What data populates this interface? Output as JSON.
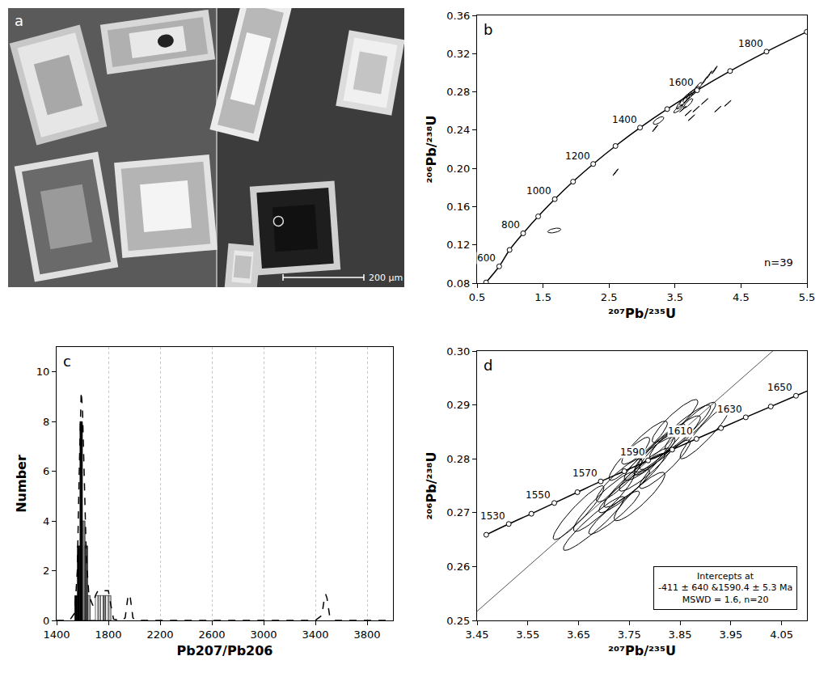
{
  "image_panel": {
    "panel_label": "a",
    "scale_bar": "200 µm"
  },
  "chart_data": [
    {
      "panel_label": "b",
      "type": "concordia",
      "xlabel": "²⁰⁷Pb/²³⁵U",
      "ylabel": "²⁰⁶Pb/²³⁸U",
      "xlim": [
        0.5,
        5.5
      ],
      "ylim": [
        0.08,
        0.36
      ],
      "xticks": [
        0.5,
        1.5,
        2.5,
        3.5,
        4.5,
        5.5
      ],
      "yticks": [
        0.08,
        0.12,
        0.16,
        {
          "value": 0.2,
          "label": "0.20"
        },
        0.24,
        0.28,
        0.32,
        0.36
      ],
      "grid": false,
      "concordia": {
        "ages": [
          500,
          600,
          700,
          800,
          900,
          1000,
          1100,
          1200,
          1300,
          1400,
          1500,
          1600,
          1700,
          1800,
          1900
        ],
        "x": [
          0.6362,
          0.8357,
          0.9926,
          1.1987,
          1.4263,
          1.6774,
          1.9545,
          2.2603,
          2.5977,
          2.9701,
          3.381,
          3.8344,
          4.3347,
          4.8869,
          5.4962
        ],
        "y": [
          0.0807,
          0.0975,
          0.1147,
          0.1321,
          0.1498,
          0.1678,
          0.1861,
          0.2046,
          0.2234,
          0.2426,
          0.262,
          0.2817,
          0.3018,
          0.3221,
          0.3428
        ],
        "labeled_ages": [
          600,
          800,
          1000,
          1200,
          1400,
          1600,
          1800
        ]
      },
      "ellipses": {
        "x": [
          1.67,
          2.6,
          3.2,
          3.25,
          3.55,
          3.6,
          3.65,
          3.7,
          3.75,
          3.8,
          3.85,
          3.7,
          3.95,
          4.02,
          4.1,
          3.62,
          3.7,
          3.75,
          3.82,
          3.95,
          4.15,
          4.3
        ],
        "y": [
          0.135,
          0.196,
          0.242,
          0.25,
          0.262,
          0.268,
          0.272,
          0.275,
          0.278,
          0.281,
          0.285,
          0.268,
          0.292,
          0.298,
          0.303,
          0.262,
          0.258,
          0.253,
          0.262,
          0.27,
          0.262,
          0.268
        ],
        "x_err": [
          0.1,
          0.04,
          0.04,
          0.08,
          0.07,
          0.08,
          0.08,
          0.08,
          0.07,
          0.07,
          0.06,
          0.07,
          0.04,
          0.04,
          0.04,
          0.05,
          0.05,
          0.05,
          0.05,
          0.05,
          0.05,
          0.05
        ],
        "y_err": [
          0.0025,
          0.0035,
          0.0035,
          0.004,
          0.004,
          0.006,
          0.006,
          0.006,
          0.005,
          0.005,
          0.005,
          0.005,
          0.004,
          0.004,
          0.004,
          0.003,
          0.003,
          0.003,
          0.003,
          0.003,
          0.003,
          0.003
        ],
        "rho": [
          0.5,
          0.98,
          0.98,
          0.7,
          0.85,
          0.85,
          0.85,
          0.85,
          0.85,
          0.85,
          0.85,
          0.85,
          0.98,
          0.98,
          0.98,
          0.99,
          0.99,
          0.99,
          0.99,
          0.99,
          0.99,
          0.99
        ]
      },
      "annotations": [
        "n=39"
      ]
    },
    {
      "panel_label": "c",
      "type": "histogram",
      "xlabel": "Pb207/Pb206",
      "ylabel": "Number",
      "xlim": [
        1400,
        4000
      ],
      "ylim": [
        0,
        11
      ],
      "xticks": [
        1400,
        1800,
        2200,
        2600,
        3000,
        3400,
        3800
      ],
      "yticks": [
        0,
        2,
        4,
        6,
        8,
        10
      ],
      "grid": "x",
      "bins": [
        1540,
        1560,
        1580,
        1600,
        1620,
        1640,
        1660,
        1680,
        1700,
        1720,
        1740,
        1760,
        1780,
        1800,
        1820
      ],
      "counts": [
        1,
        3,
        8,
        4,
        3,
        1,
        0,
        0,
        1,
        1,
        1,
        1,
        1,
        1
      ],
      "colors": [
        "#000000",
        "#000000",
        "#000000",
        "#808080",
        "#404040",
        "#a0a0a0",
        "#ffffff",
        "#ffffff",
        "#ffffff",
        "#c0c0c0",
        "#ffffff",
        "#808080",
        "#ffffff",
        "#c0c0c0"
      ],
      "series": [
        {
          "type": "line",
          "line_style": "dash",
          "color": "#000000",
          "x": [
            1400,
            1500,
            1540,
            1560,
            1575,
            1590,
            1600,
            1615,
            1630,
            1650,
            1680,
            1700,
            1720,
            1760,
            1800,
            1820,
            1840,
            1900,
            1930,
            1950,
            1960,
            1970,
            1990,
            2020,
            3400,
            3450,
            3470,
            3480,
            3490,
            3510,
            3550,
            4000
          ],
          "values": [
            0,
            0,
            0.3,
            2.0,
            6.0,
            9.2,
            8.5,
            5.0,
            2.5,
            1.0,
            0.6,
            1.0,
            1.2,
            1.2,
            1.2,
            0.6,
            0.05,
            0,
            0.1,
            0.9,
            1.05,
            0.9,
            0.1,
            0,
            0,
            0.2,
            0.9,
            1.05,
            0.9,
            0.2,
            0,
            0
          ]
        }
      ]
    },
    {
      "panel_label": "d",
      "type": "concordia",
      "xlabel": "²⁰⁷Pb/²³⁵U",
      "ylabel": "²⁰⁶Pb/²³⁸U",
      "xlim": [
        3.45,
        4.1
      ],
      "ylim": [
        0.25,
        0.3
      ],
      "xticks": [
        3.45,
        3.55,
        3.65,
        3.75,
        3.85,
        3.95,
        4.05
      ],
      "yticks": [
        0.25,
        0.26,
        0.27,
        0.28,
        0.29,
        {
          "value": 0.3,
          "label": "0.30"
        }
      ],
      "grid": false,
      "concordia": {
        "ages": [
          1520,
          1530,
          1540,
          1550,
          1560,
          1570,
          1580,
          1590,
          1600,
          1610,
          1620,
          1630,
          1640,
          1650,
          1660
        ],
        "x": [
          3.4681,
          3.5124,
          3.557,
          3.6021,
          3.6477,
          3.6937,
          3.7401,
          3.787,
          3.8344,
          3.8823,
          3.9306,
          3.9794,
          4.0287,
          4.0784,
          4.1287
        ],
        "y": [
          0.2659,
          0.2679,
          0.2698,
          0.2718,
          0.2738,
          0.2758,
          0.2777,
          0.2797,
          0.2817,
          0.2837,
          0.2857,
          0.2877,
          0.2897,
          0.2917,
          0.2937
        ],
        "labeled_ages": [
          1530,
          1550,
          1570,
          1590,
          1610,
          1630,
          1650
        ]
      },
      "discordia": {
        "x": [
          3.45,
          4.1
        ],
        "y": [
          0.2517,
          0.3056
        ]
      },
      "ellipses": {
        "x": [
          3.7,
          3.68,
          3.72,
          3.74,
          3.76,
          3.78,
          3.79,
          3.8,
          3.81,
          3.83,
          3.85,
          3.87,
          3.75,
          3.78,
          3.82,
          3.77,
          3.73,
          3.65,
          3.9,
          3.84
        ],
        "y": [
          0.272,
          0.268,
          0.27,
          0.274,
          0.276,
          0.278,
          0.28,
          0.281,
          0.282,
          0.283,
          0.285,
          0.286,
          0.28,
          0.283,
          0.279,
          0.273,
          0.276,
          0.27,
          0.285,
          0.287
        ],
        "x_err": [
          0.06,
          0.06,
          0.05,
          0.05,
          0.06,
          0.05,
          0.05,
          0.04,
          0.05,
          0.06,
          0.06,
          0.05,
          0.04,
          0.045,
          0.05,
          0.05,
          0.045,
          0.05,
          0.05,
          0.045
        ],
        "y_err": [
          0.0055,
          0.005,
          0.004,
          0.004,
          0.005,
          0.004,
          0.004,
          0.004,
          0.0045,
          0.005,
          0.005,
          0.0045,
          0.004,
          0.004,
          0.0045,
          0.0045,
          0.004,
          0.005,
          0.005,
          0.004
        ],
        "rho": [
          0.93,
          0.94,
          0.93,
          0.92,
          0.93,
          0.92,
          0.9,
          0.9,
          0.92,
          0.93,
          0.93,
          0.92,
          0.9,
          0.9,
          0.92,
          0.9,
          0.9,
          0.93,
          0.93,
          0.9
        ]
      },
      "annotations": [
        "Intercepts at",
        "-411 ± 640 &1590.4 ± 5.3 Ma",
        "MSWD = 1.6, n=20"
      ]
    }
  ]
}
